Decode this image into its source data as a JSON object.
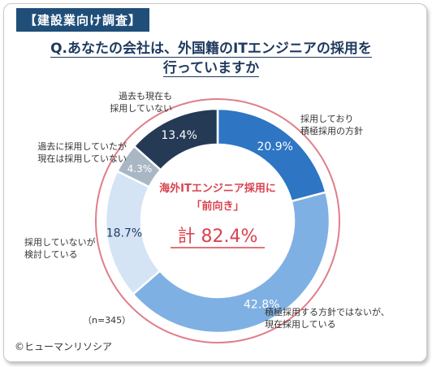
{
  "header_tag": "【建設業向け調査】",
  "question_line1": "Q.あなたの会社は、外国籍のITエンジニアの採用を",
  "question_line2": "行っていますか",
  "sample_size": "（n=345）",
  "copyright": "©ヒューマンリソシア",
  "center": {
    "line1": "海外ITエンジニア採用に",
    "line2": "「前向き」",
    "total": "計  82.4%"
  },
  "colors": {
    "ring": "#e07e8a",
    "center_text": "#d9434f",
    "question": "#1f3a5f",
    "tag_bg": "#1f4e79"
  },
  "chart_data": {
    "type": "pie",
    "variant": "donut",
    "unit": "%",
    "slices": [
      {
        "label_lines": [
          "採用しており",
          "積極採用の方針"
        ],
        "value": 20.9,
        "value_label": "20.9%",
        "color": "#2e75c4"
      },
      {
        "label_lines": [
          "積極採用する方針ではないが、",
          "現在採用している"
        ],
        "value": 42.8,
        "value_label": "42.8%",
        "color": "#7fb0e3"
      },
      {
        "label_lines": [
          "採用していないが",
          "検討している"
        ],
        "value": 18.7,
        "value_label": "18.7%",
        "color": "#d4e4f5"
      },
      {
        "label_lines": [
          "過去に採用していたが",
          "現在は採用していない"
        ],
        "value": 4.3,
        "value_label": "4.3%",
        "color": "#a9b6c4"
      },
      {
        "label_lines": [
          "過去も現在も",
          "採用していない"
        ],
        "value": 13.4,
        "value_label": "13.4%",
        "color": "#243a55"
      }
    ]
  }
}
